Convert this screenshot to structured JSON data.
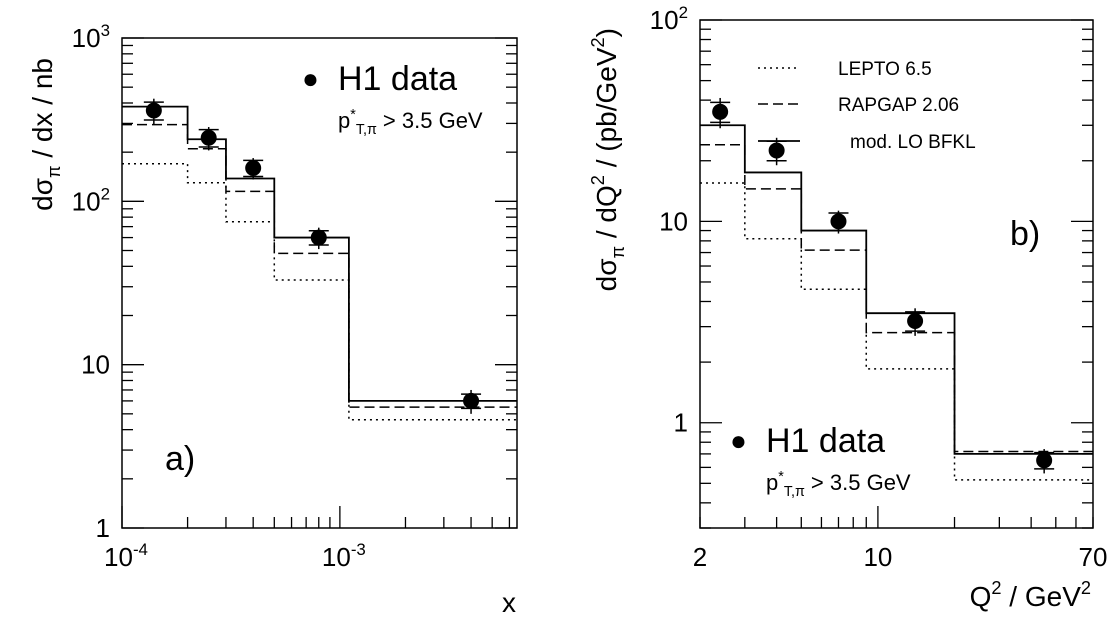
{
  "chart_data": [
    {
      "type": "line",
      "panel_label": "a)",
      "xscale": "log",
      "yscale": "log",
      "xlim": [
        0.0001,
        0.0065
      ],
      "ylim": [
        1,
        1000
      ],
      "xlabel": "x",
      "ylabel_parts": {
        "main": "dσ",
        "sub": "π",
        "rest": " / dx  / nb"
      },
      "x_tick_labels": [
        {
          "value": 0.0001,
          "base": "10",
          "exp": "-4"
        },
        {
          "value": 0.001,
          "base": "10",
          "exp": "-3"
        }
      ],
      "y_tick_labels": [
        {
          "value": 1,
          "text": "1"
        },
        {
          "value": 10,
          "text": "10"
        },
        {
          "value": 100,
          "base": "10",
          "exp": "2"
        },
        {
          "value": 1000,
          "base": "10",
          "exp": "3"
        }
      ],
      "legend_parts": {
        "marker": "●",
        "label": "H1 data",
        "cut_p": "p",
        "cut_sup": "*",
        "cut_sub": "T,π",
        "cut_rest": " > 3.5 GeV"
      },
      "bin_edges": [
        0.0001,
        0.0002,
        0.0003,
        0.0005,
        0.0011,
        0.0065
      ],
      "data": {
        "x": [
          0.00014,
          0.00025,
          0.0004,
          0.0008,
          0.004
        ],
        "y": [
          360,
          245,
          160,
          60,
          6.0
        ],
        "stat_err": [
          45,
          30,
          18,
          6,
          0.6
        ],
        "tot_err": [
          65,
          40,
          24,
          9,
          1.0
        ]
      },
      "series": [
        {
          "name": "LEPTO 6.5",
          "style": "dotted",
          "values": [
            170,
            130,
            75,
            33,
            4.6
          ]
        },
        {
          "name": "RAPGAP 2.06",
          "style": "dashed",
          "values": [
            295,
            210,
            115,
            48,
            5.5
          ]
        },
        {
          "name": "mod. LO BFKL",
          "style": "solid",
          "values": [
            380,
            240,
            138,
            60,
            6.0
          ]
        }
      ]
    },
    {
      "type": "line",
      "panel_label": "b)",
      "xscale": "log",
      "yscale": "log",
      "xlim": [
        2,
        70
      ],
      "ylim": [
        0.3,
        100
      ],
      "xlabel_parts": {
        "main": "Q",
        "sup": "2",
        "rest": " / GeV",
        "sup2": "2"
      },
      "ylabel_parts": {
        "main": "dσ",
        "sub": "π",
        "rest": " / dQ",
        "sup": "2",
        "rest2": "  / (pb/GeV",
        "sup2": "2",
        "rest3": ")"
      },
      "x_tick_labels": [
        {
          "value": 2,
          "text": "2"
        },
        {
          "value": 10,
          "text": "10"
        },
        {
          "value": 70,
          "text": "70"
        }
      ],
      "y_tick_labels": [
        {
          "value": 1,
          "text": "1"
        },
        {
          "value": 10,
          "text": "10"
        },
        {
          "value": 100,
          "base": "10",
          "exp": "2"
        }
      ],
      "legend_position": "top-right",
      "legend_parts": {
        "marker": "●",
        "label": "H1 data",
        "cut_p": "p",
        "cut_sup": "*",
        "cut_sub": "T,π",
        "cut_rest": " > 3.5 GeV"
      },
      "bin_edges": [
        2,
        3,
        5,
        9,
        20,
        70
      ],
      "data": {
        "x": [
          2.4,
          4.0,
          7.0,
          14.0,
          45.0
        ],
        "y": [
          35,
          22.5,
          10,
          3.2,
          0.65
        ],
        "stat_err": [
          4,
          2.5,
          1.0,
          0.35,
          0.06
        ],
        "tot_err": [
          6,
          3.5,
          1.3,
          0.5,
          0.09
        ]
      },
      "series": [
        {
          "name": "LEPTO 6.5",
          "style": "dotted",
          "values": [
            15.5,
            8.2,
            4.6,
            1.85,
            0.52
          ]
        },
        {
          "name": "RAPGAP 2.06",
          "style": "dashed",
          "values": [
            24,
            14.5,
            7.2,
            2.8,
            0.72
          ]
        },
        {
          "name": "mod. LO BFKL",
          "style": "solid",
          "values": [
            30,
            17.5,
            9.0,
            3.5,
            0.7
          ]
        }
      ]
    }
  ]
}
